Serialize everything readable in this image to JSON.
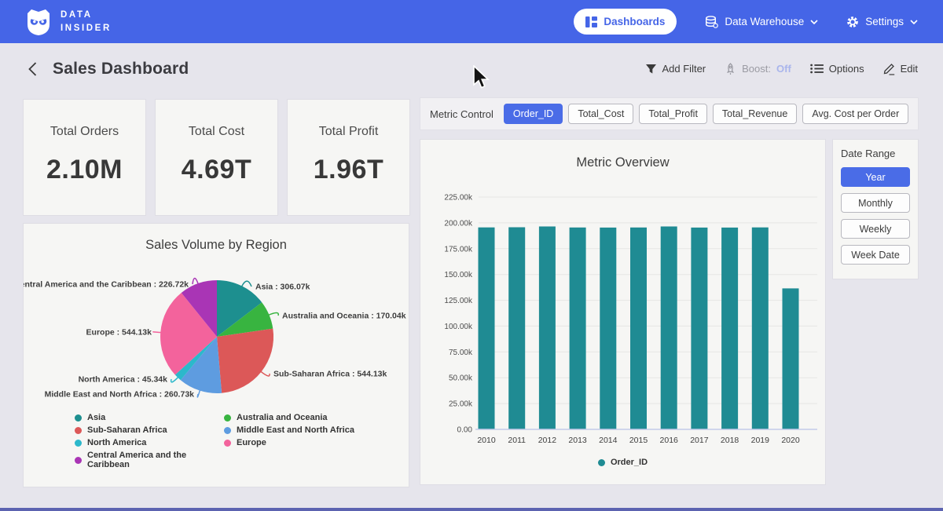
{
  "navbar": {
    "logo_line1": "DATA",
    "logo_line2": "INSIDER",
    "dashboards_label": "Dashboards",
    "data_warehouse_label": "Data Warehouse",
    "settings_label": "Settings"
  },
  "header": {
    "title": "Sales Dashboard",
    "add_filter_label": "Add Filter",
    "boost_label": "Boost:",
    "boost_value": "Off",
    "options_label": "Options",
    "edit_label": "Edit"
  },
  "kpis": [
    {
      "label": "Total Orders",
      "value": "2.10M"
    },
    {
      "label": "Total Cost",
      "value": "4.69T"
    },
    {
      "label": "Total Profit",
      "value": "1.96T"
    }
  ],
  "metric_control": {
    "label": "Metric Control",
    "options": [
      {
        "label": "Order_ID",
        "selected": true
      },
      {
        "label": "Total_Cost",
        "selected": false
      },
      {
        "label": "Total_Profit",
        "selected": false
      },
      {
        "label": "Total_Revenue",
        "selected": false
      },
      {
        "label": "Avg. Cost per Order",
        "selected": false
      }
    ]
  },
  "date_range": {
    "label": "Date Range",
    "options": [
      {
        "label": "Year",
        "selected": true
      },
      {
        "label": "Monthly",
        "selected": false
      },
      {
        "label": "Weekly",
        "selected": false
      },
      {
        "label": "Week Date",
        "selected": false
      }
    ]
  },
  "chart_data": [
    {
      "type": "pie",
      "title": "Sales Volume by Region",
      "unit": "k",
      "slices": [
        {
          "label": "Asia",
          "value": 306.07,
          "display": "306.07k",
          "color": "#1D8F8F"
        },
        {
          "label": "Australia and Oceania",
          "value": 170.04,
          "display": "170.04k",
          "color": "#38B440"
        },
        {
          "label": "Sub-Saharan Africa",
          "value": 544.13,
          "display": "544.13k",
          "color": "#DC5858"
        },
        {
          "label": "Middle East and North Africa",
          "value": 260.73,
          "display": "260.73k",
          "color": "#5E9CE0"
        },
        {
          "label": "North America",
          "value": 45.34,
          "display": "45.34k",
          "color": "#2CB8CB"
        },
        {
          "label": "Europe",
          "value": 544.13,
          "display": "544.13k",
          "color": "#F3639C"
        },
        {
          "label": "Central America and the Caribbean",
          "value": 226.72,
          "display": "226.72k",
          "color": "#A935B5"
        }
      ],
      "legend_columns": [
        [
          0,
          2,
          4,
          6
        ],
        [
          1,
          3,
          5
        ]
      ],
      "legend_position": "bottom"
    },
    {
      "type": "bar",
      "title": "Metric Overview",
      "categories": [
        "2010",
        "2011",
        "2012",
        "2013",
        "2014",
        "2015",
        "2016",
        "2017",
        "2018",
        "2019",
        "2020"
      ],
      "series": [
        {
          "name": "Order_ID",
          "values_k": [
            195.6,
            195.7,
            196.5,
            195.5,
            195.4,
            195.5,
            196.5,
            195.4,
            195.4,
            195.6,
            136.5
          ]
        }
      ],
      "color": "#1F8B93",
      "ylim_k": [
        0,
        225
      ],
      "yticks": [
        {
          "v": 0,
          "label": "0.00"
        },
        {
          "v": 25,
          "label": "25.00k"
        },
        {
          "v": 50,
          "label": "50.00k"
        },
        {
          "v": 75,
          "label": "75.00k"
        },
        {
          "v": 100,
          "label": "100.00k"
        },
        {
          "v": 125,
          "label": "125.00k"
        },
        {
          "v": 150,
          "label": "150.00k"
        },
        {
          "v": 175,
          "label": "175.00k"
        },
        {
          "v": 200,
          "label": "200.00k"
        },
        {
          "v": 225,
          "label": "225.00k"
        }
      ],
      "grid": true,
      "legend_position": "bottom"
    }
  ],
  "colors": {
    "accent": "#4565E7",
    "accent_button": "#4A6CE7",
    "bar_teal": "#1F8B93",
    "boost_off_text": "#A9B5EC",
    "page_background": "#E6E5EC",
    "card_background": "#F6F6F4"
  }
}
